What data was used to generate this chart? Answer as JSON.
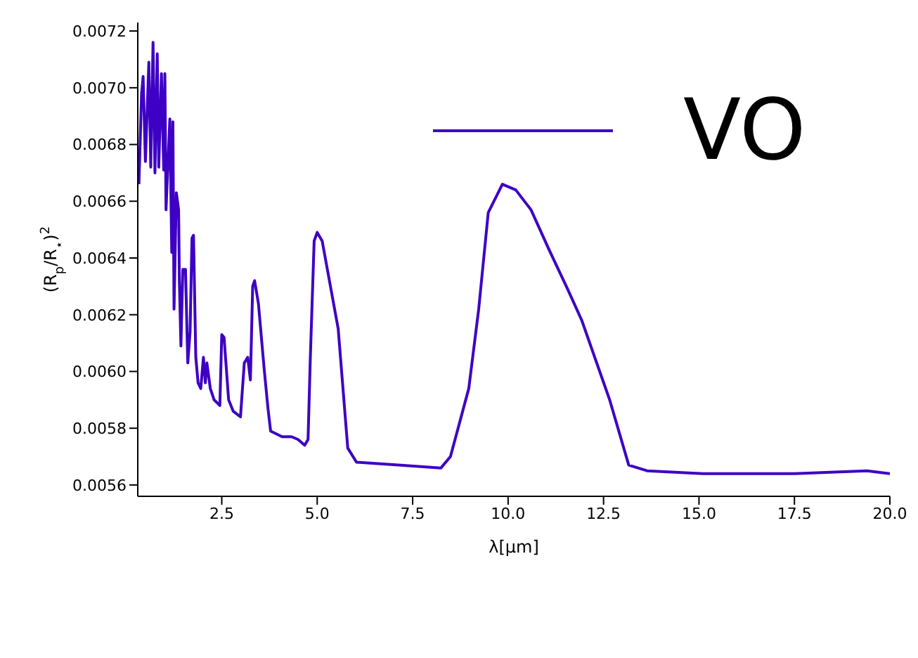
{
  "chart_data": {
    "type": "line",
    "xlabel": "λ[μm]",
    "ylabel": "(R$_{p}$/R$_{⋆}$)$^{2}$",
    "xlim": [
      0.3,
      20
    ],
    "ylim": [
      0.00556,
      0.00723
    ],
    "xticks": [
      {
        "value": 2.5,
        "label": "2.5"
      },
      {
        "value": 5,
        "label": "5.0"
      },
      {
        "value": 7.5,
        "label": "7.5"
      },
      {
        "value": 10,
        "label": "10.0"
      },
      {
        "value": 12.5,
        "label": "12.5"
      },
      {
        "value": 15,
        "label": "15.0"
      },
      {
        "value": 17.5,
        "label": "17.5"
      },
      {
        "value": 20,
        "label": "20.0"
      }
    ],
    "yticks": [
      {
        "value": 0.0056,
        "label": "0.0056"
      },
      {
        "value": 0.0058,
        "label": "0.0058"
      },
      {
        "value": 0.006,
        "label": "0.0060"
      },
      {
        "value": 0.0062,
        "label": "0.0062"
      },
      {
        "value": 0.0064,
        "label": "0.0064"
      },
      {
        "value": 0.0066,
        "label": "0.0066"
      },
      {
        "value": 0.0068,
        "label": "0.0068"
      },
      {
        "value": 0.007,
        "label": "0.0070"
      },
      {
        "value": 0.0072,
        "label": "0.0072"
      }
    ],
    "legend": "top right",
    "marker": "none",
    "line_style": "solid",
    "series": [
      {
        "name": "VO",
        "color": "#3d00c4",
        "x": [
          0.33,
          0.4,
          0.44,
          0.5,
          0.59,
          0.64,
          0.7,
          0.75,
          0.81,
          0.85,
          0.92,
          0.98,
          1.01,
          1.04,
          1.14,
          1.19,
          1.22,
          1.25,
          1.31,
          1.37,
          1.39,
          1.43,
          1.48,
          1.55,
          1.61,
          1.67,
          1.72,
          1.76,
          1.82,
          1.88,
          1.95,
          2.02,
          2.07,
          2.11,
          2.2,
          2.3,
          2.45,
          2.5,
          2.56,
          2.62,
          2.68,
          2.8,
          2.99,
          3.09,
          3.18,
          3.25,
          3.31,
          3.36,
          3.46,
          3.61,
          3.71,
          3.78,
          4.08,
          4.33,
          4.5,
          4.67,
          4.76,
          4.82,
          4.92,
          5.0,
          5.13,
          5.55,
          5.8,
          6.03,
          7.13,
          8.24,
          8.49,
          8.97,
          9.23,
          9.48,
          9.85,
          10.2,
          10.6,
          11.07,
          11.56,
          11.93,
          12.66,
          13.16,
          13.64,
          15.1,
          17.5,
          19.4,
          20
        ],
        "values": [
          0.00666,
          0.00698,
          0.00704,
          0.00674,
          0.00709,
          0.00672,
          0.00716,
          0.0067,
          0.00712,
          0.00672,
          0.00705,
          0.00671,
          0.00705,
          0.00657,
          0.00689,
          0.00642,
          0.00688,
          0.00622,
          0.00663,
          0.00657,
          0.00632,
          0.00609,
          0.00636,
          0.00636,
          0.00603,
          0.00614,
          0.00647,
          0.00648,
          0.00605,
          0.00596,
          0.00594,
          0.00605,
          0.00596,
          0.00603,
          0.00594,
          0.0059,
          0.00588,
          0.00613,
          0.00612,
          0.00601,
          0.0059,
          0.00586,
          0.00584,
          0.00603,
          0.00605,
          0.00597,
          0.0063,
          0.00632,
          0.00624,
          0.00601,
          0.00587,
          0.00579,
          0.00577,
          0.00577,
          0.00576,
          0.00574,
          0.00576,
          0.00605,
          0.00646,
          0.00649,
          0.00646,
          0.00615,
          0.00573,
          0.00568,
          0.00567,
          0.00566,
          0.0057,
          0.00594,
          0.00622,
          0.00656,
          0.00666,
          0.00664,
          0.00657,
          0.00643,
          0.00629,
          0.00618,
          0.0059,
          0.00567,
          0.00565,
          0.00564,
          0.00564,
          0.00565,
          0.00564
        ]
      }
    ]
  }
}
